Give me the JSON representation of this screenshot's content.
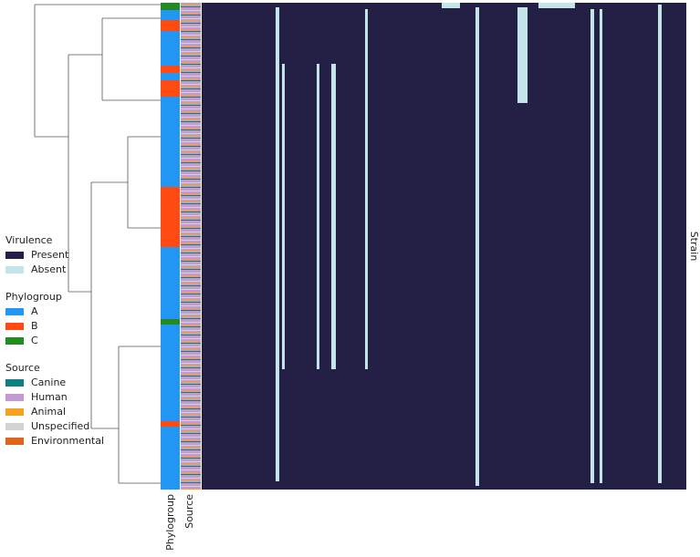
{
  "chart_data": {
    "type": "heatmap",
    "row_label": "Strain",
    "annotation_columns": [
      "Phylogroup",
      "Source"
    ],
    "legends": [
      {
        "title": "Virulence",
        "items": [
          {
            "label": "Present",
            "color": "#241f44"
          },
          {
            "label": "Absent",
            "color": "#c4e5e8"
          }
        ]
      },
      {
        "title": "Phylogroup",
        "items": [
          {
            "label": "A",
            "color": "#2196f3"
          },
          {
            "label": "B",
            "color": "#ff4a12"
          },
          {
            "label": "C",
            "color": "#228b22"
          }
        ]
      },
      {
        "title": "Source",
        "items": [
          {
            "label": "Canine",
            "color": "#0d8080"
          },
          {
            "label": "Human",
            "color": "#c49bd0"
          },
          {
            "label": "Animal",
            "color": "#f5a31f"
          },
          {
            "label": "Unspecified",
            "color": "#d3d3d3"
          },
          {
            "label": "Environmental",
            "color": "#e0651a"
          }
        ]
      }
    ]
  }
}
